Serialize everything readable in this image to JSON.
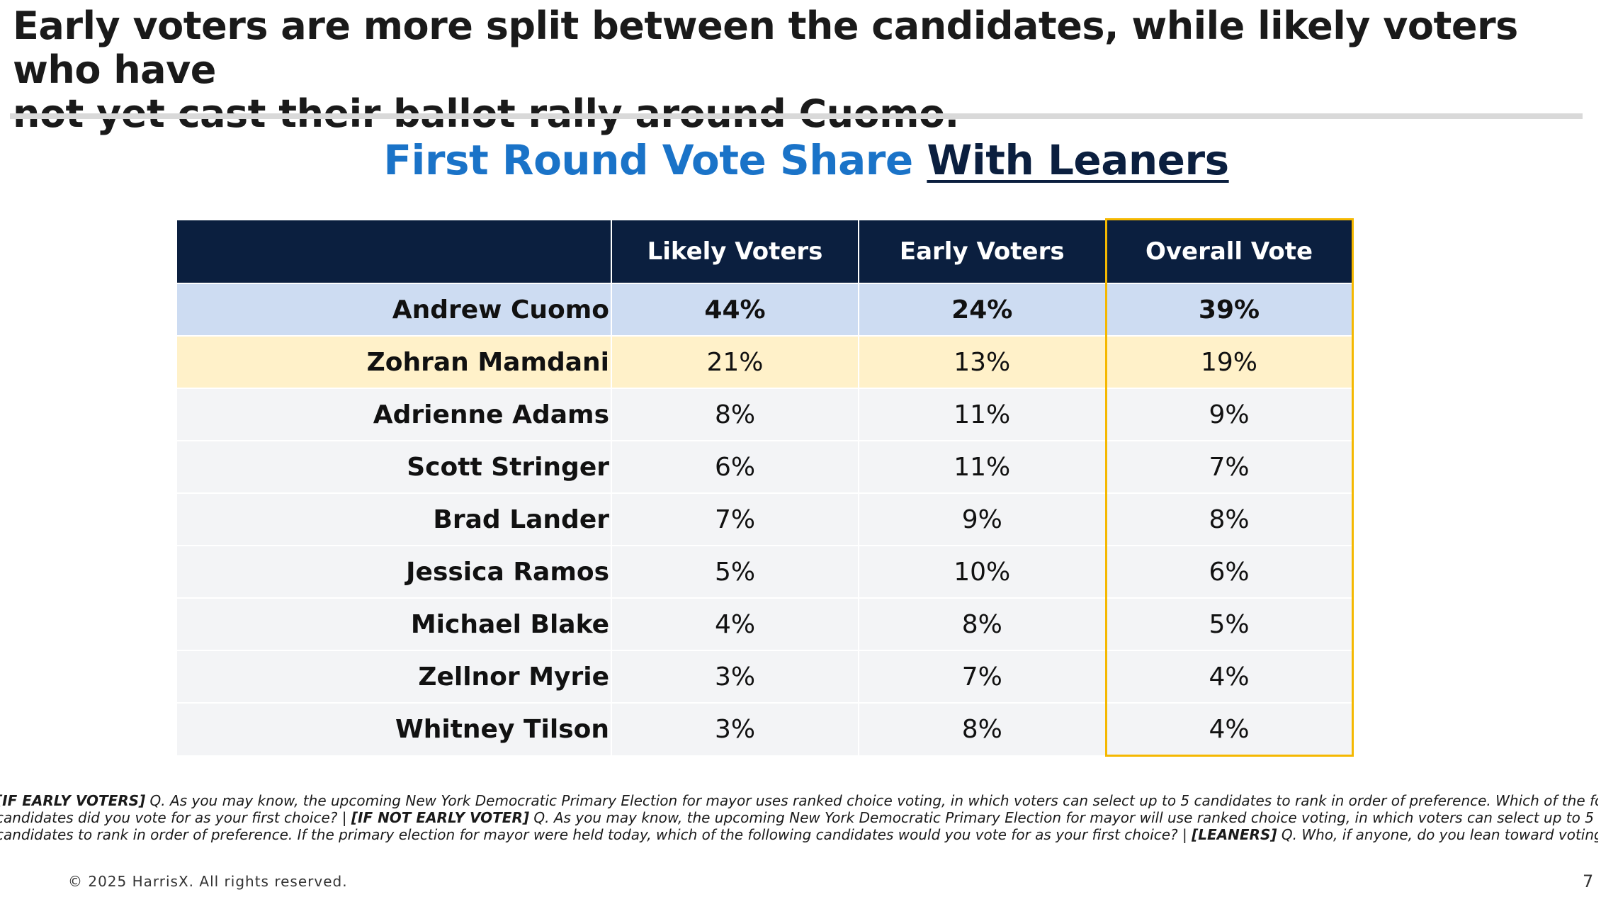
{
  "headline": {
    "line1": "Early voters are more split between the candidates, while likely voters who have",
    "line2": "not yet cast their ballot rally around Cuomo."
  },
  "subtitle": {
    "part1": "First Round Vote Share",
    "part2": "With Leaners"
  },
  "colors": {
    "header_bg": "#0b1f3f",
    "title_blue": "#1a73c8",
    "highlight_border": "#f5b800",
    "row_cuomo": "#cddcf2",
    "row_mamdani": "#fff1c9",
    "row_default": "#f3f4f6"
  },
  "chart_data": {
    "type": "table",
    "title": "First Round Vote Share With Leaners",
    "columns": [
      "Likely Voters",
      "Early Voters",
      "Overall Vote"
    ],
    "highlighted_column": "Overall Vote",
    "rows": [
      {
        "name": "Andrew Cuomo",
        "values": [
          "44%",
          "24%",
          "39%"
        ]
      },
      {
        "name": "Zohran Mamdani",
        "values": [
          "21%",
          "13%",
          "19%"
        ]
      },
      {
        "name": "Adrienne Adams",
        "values": [
          "8%",
          "11%",
          "9%"
        ]
      },
      {
        "name": "Scott Stringer",
        "values": [
          "6%",
          "11%",
          "7%"
        ]
      },
      {
        "name": "Brad Lander",
        "values": [
          "7%",
          "9%",
          "8%"
        ]
      },
      {
        "name": "Jessica Ramos",
        "values": [
          "5%",
          "10%",
          "6%"
        ]
      },
      {
        "name": "Michael Blake",
        "values": [
          "4%",
          "8%",
          "5%"
        ]
      },
      {
        "name": "Zellnor Myrie",
        "values": [
          "3%",
          "7%",
          "4%"
        ]
      },
      {
        "name": "Whitney Tilson",
        "values": [
          "3%",
          "8%",
          "4%"
        ]
      }
    ]
  },
  "footnote": {
    "tag1": "[IF EARLY VOTERS]",
    "text1a": " Q. As you may know, the upcoming New York Democratic Primary Election for mayor uses ranked choice voting, in which voters can select up to 5 candidates to rank in order of preference. Which of the following",
    "text1b": "candidates did you vote for as your first choice? | ",
    "tag2": "[IF NOT EARLY VOTER]",
    "text2a": " Q. As you may know, the upcoming New York Democratic Primary Election for mayor will use ranked choice voting, in which voters can select up to 5",
    "text2b": "candidates to rank in order of preference. If the primary election for mayor were held today, which of the following candidates would you vote for as your first choice? | ",
    "tag3": "[LEANERS]",
    "text3": " Q. Who, if anyone, do you lean toward voting for?"
  },
  "footer": {
    "copyright": "© 2025 HarrisX. All rights reserved.",
    "page_number": "7"
  }
}
